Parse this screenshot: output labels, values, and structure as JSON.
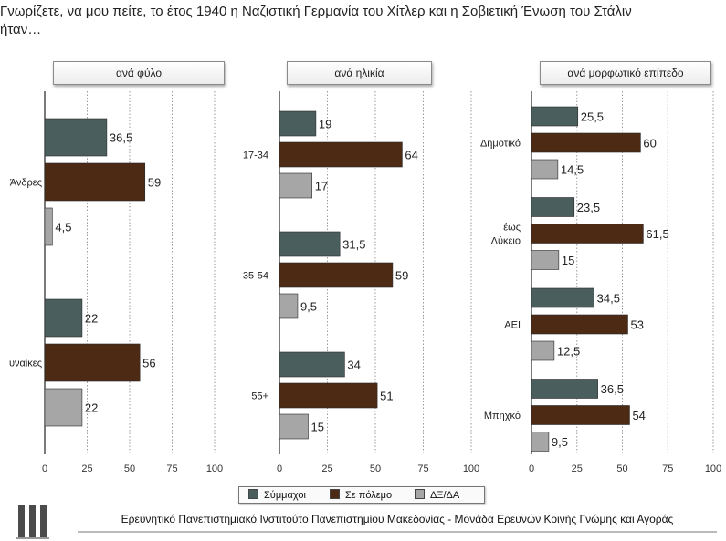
{
  "question": "Γνωρίζετε, να μου πείτε, το έτος 1940 η Ναζιστική Γερμανία του Χίτλερ και η Σοβιετική Ένωση του Στάλιν\nήταν…",
  "colors": {
    "allies": "#4a5e5e",
    "at_war": "#4d2a14",
    "dk": "#a6a6a6"
  },
  "legend": [
    {
      "label": "Σύμμαχοι",
      "color": "#4a5e5e"
    },
    {
      "label": "Σε πόλεμο",
      "color": "#4d2a14"
    },
    {
      "label": "ΔΞ/ΔΑ",
      "color": "#a6a6a6"
    }
  ],
  "footer": "Ερευνητικό Πανεπιστημιακό Ινστιτούτο Πανεπιστημίου Μακεδονίας - Μονάδα Ερευνών Κοινής Γνώμης και Αγοράς",
  "chart_data": [
    {
      "type": "bar",
      "orientation": "horizontal",
      "title": "ανά φύλο",
      "categories": [
        "Άνδρες",
        "Γυναίκες"
      ],
      "category_labels_visible": [
        "Άνδρες",
        "υναίκες"
      ],
      "series": [
        {
          "name": "Σύμμαχοι",
          "values": [
            36.5,
            22
          ]
        },
        {
          "name": "Σε πόλεμο",
          "values": [
            59,
            56
          ]
        },
        {
          "name": "ΔΞ/ΔΑ",
          "values": [
            4.5,
            22
          ]
        }
      ],
      "value_labels": [
        [
          "36,5",
          "22"
        ],
        [
          "59",
          "56"
        ],
        [
          "4,5",
          "22"
        ]
      ],
      "xlim": [
        0,
        100
      ],
      "xticks": [
        "0",
        "25",
        "50",
        "75",
        "100"
      ],
      "grid": "vertical dotted"
    },
    {
      "type": "bar",
      "orientation": "horizontal",
      "title": "ανά ηλικία",
      "categories": [
        "17-34",
        "35-54",
        "55+"
      ],
      "series": [
        {
          "name": "Σύμμαχοι",
          "values": [
            19,
            31.5,
            34
          ]
        },
        {
          "name": "Σε πόλεμο",
          "values": [
            64,
            59,
            51
          ]
        },
        {
          "name": "ΔΞ/ΔΑ",
          "values": [
            17,
            9.5,
            15
          ]
        }
      ],
      "value_labels": [
        [
          "19",
          "31,5",
          "34"
        ],
        [
          "64",
          "59",
          "51"
        ],
        [
          "17",
          "9,5",
          "15"
        ]
      ],
      "xlim": [
        0,
        100
      ],
      "xticks": [
        "0",
        "25",
        "50",
        "75",
        "100"
      ],
      "grid": "vertical dotted"
    },
    {
      "type": "bar",
      "orientation": "horizontal",
      "title": "ανά μορφωτικό επίπεδο",
      "categories": [
        "Δημοτικό",
        "έως\nΛύκειο",
        "ΑΕΙ",
        "Μπηχκό"
      ],
      "series": [
        {
          "name": "Σύμμαχοι",
          "values": [
            25.5,
            23.5,
            34.5,
            36.5
          ]
        },
        {
          "name": "Σε πόλεμο",
          "values": [
            60,
            61.5,
            53,
            54
          ]
        },
        {
          "name": "ΔΞ/ΔΑ",
          "values": [
            14.5,
            15,
            12.5,
            9.5
          ]
        }
      ],
      "value_labels": [
        [
          "25,5",
          "23,5",
          "34,5",
          "36,5"
        ],
        [
          "60",
          "61,5",
          "53",
          "54"
        ],
        [
          "14,5",
          "15",
          "12,5",
          "9,5"
        ]
      ],
      "xlim": [
        0,
        100
      ],
      "xticks": [
        "0",
        "25",
        "50",
        "75",
        "100"
      ],
      "grid": "vertical dotted"
    }
  ]
}
